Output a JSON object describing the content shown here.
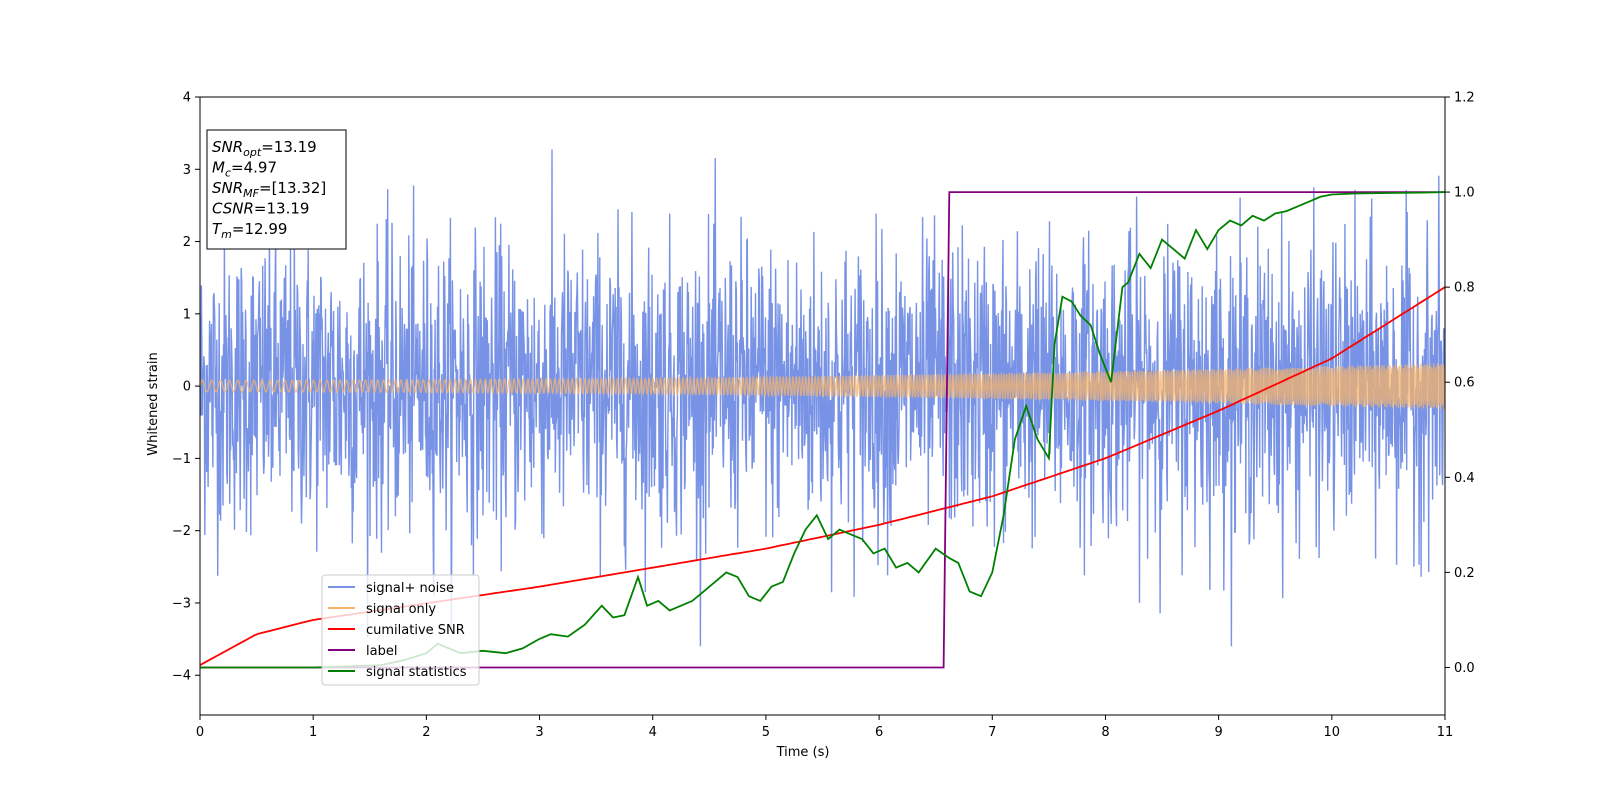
{
  "chart_data": {
    "type": "line",
    "xlabel": "Time (s)",
    "ylabel": "Whitened strain",
    "xlim": [
      0,
      11
    ],
    "ylim_left": [
      -4.55,
      4
    ],
    "ylim_right": [
      -0.1,
      1.2
    ],
    "x_ticks": [
      0,
      1,
      2,
      3,
      4,
      5,
      6,
      7,
      8,
      9,
      10,
      11
    ],
    "y_ticks_left": [
      -4,
      -3,
      -2,
      -1,
      0,
      1,
      2,
      3,
      4
    ],
    "y_tick_labels_left": [
      "−4",
      "−3",
      "−2",
      "−1",
      "0",
      "1",
      "2",
      "3",
      "4"
    ],
    "y_ticks_right": [
      0.0,
      0.2,
      0.4,
      0.6,
      0.8,
      1.0,
      1.2
    ],
    "y_tick_labels_right": [
      "0.0",
      "0.2",
      "0.4",
      "0.6",
      "0.8",
      "1.0",
      "1.2"
    ],
    "grid": false,
    "legend_position": "lower-left",
    "info_box": {
      "lines": [
        {
          "var": "SNR",
          "sub": "opt",
          "value": "=13.19"
        },
        {
          "var": "M",
          "sub": "c",
          "value": "=4.97"
        },
        {
          "var": "SNR",
          "sub": "MF",
          "value": "=[13.32]"
        },
        {
          "var": "CSNR",
          "sub": "",
          "value": "=13.19"
        },
        {
          "var": "T",
          "sub": "m",
          "value": "=12.99"
        }
      ]
    },
    "series": [
      {
        "name": "signal+ noise",
        "axis": "left",
        "color": "#7893e6",
        "description_kind": "noise",
        "noise_envelope_typical": 1.6,
        "noise_peak_max": 3.6
      },
      {
        "name": "signal only",
        "axis": "left",
        "color": "#f5b36b",
        "description_kind": "chirp",
        "amplitude_start": 0.08,
        "amplitude_end": 0.32
      },
      {
        "name": "cumilative SNR",
        "axis": "right",
        "color": "#ff0000",
        "x": [
          0,
          0.5,
          1,
          2,
          3,
          4,
          5,
          6,
          7,
          8,
          9,
          10,
          11
        ],
        "y": [
          0.005,
          0.07,
          0.1,
          0.135,
          0.17,
          0.21,
          0.25,
          0.3,
          0.36,
          0.44,
          0.54,
          0.65,
          0.8
        ]
      },
      {
        "name": "label",
        "axis": "right",
        "color": "#800080",
        "x": [
          0,
          6.57,
          6.62,
          11
        ],
        "y": [
          0,
          0,
          1,
          1
        ]
      },
      {
        "name": "signal statistics",
        "axis": "right",
        "color": "#008000",
        "x": [
          0,
          1,
          1.6,
          1.8,
          2.0,
          2.1,
          2.2,
          2.3,
          2.5,
          2.7,
          2.85,
          3.0,
          3.1,
          3.25,
          3.4,
          3.55,
          3.65,
          3.75,
          3.87,
          3.95,
          4.05,
          4.15,
          4.25,
          4.35,
          4.45,
          4.55,
          4.65,
          4.75,
          4.85,
          4.95,
          5.05,
          5.15,
          5.25,
          5.35,
          5.45,
          5.55,
          5.65,
          5.75,
          5.85,
          5.95,
          6.05,
          6.15,
          6.25,
          6.35,
          6.5,
          6.62,
          6.7,
          6.8,
          6.9,
          7.0,
          7.1,
          7.2,
          7.3,
          7.4,
          7.5,
          7.55,
          7.62,
          7.7,
          7.78,
          7.87,
          7.95,
          8.05,
          8.15,
          8.2,
          8.3,
          8.4,
          8.5,
          8.6,
          8.7,
          8.8,
          8.9,
          9.0,
          9.1,
          9.2,
          9.3,
          9.4,
          9.5,
          9.6,
          9.7,
          9.8,
          9.9,
          10.0,
          10.2,
          10.5,
          10.8,
          11
        ],
        "y": [
          0,
          0.0,
          0.005,
          0.015,
          0.03,
          0.05,
          0.04,
          0.03,
          0.035,
          0.03,
          0.04,
          0.06,
          0.07,
          0.065,
          0.09,
          0.13,
          0.105,
          0.11,
          0.19,
          0.13,
          0.14,
          0.12,
          0.13,
          0.14,
          0.16,
          0.18,
          0.2,
          0.19,
          0.15,
          0.14,
          0.17,
          0.18,
          0.24,
          0.29,
          0.32,
          0.27,
          0.29,
          0.28,
          0.27,
          0.24,
          0.25,
          0.21,
          0.22,
          0.2,
          0.25,
          0.23,
          0.22,
          0.16,
          0.15,
          0.2,
          0.32,
          0.48,
          0.55,
          0.48,
          0.44,
          0.68,
          0.78,
          0.77,
          0.74,
          0.72,
          0.66,
          0.6,
          0.8,
          0.81,
          0.87,
          0.84,
          0.9,
          0.88,
          0.86,
          0.92,
          0.88,
          0.92,
          0.94,
          0.93,
          0.95,
          0.94,
          0.955,
          0.96,
          0.97,
          0.98,
          0.99,
          0.995,
          0.997,
          0.998,
          0.999,
          1.0
        ]
      }
    ]
  }
}
